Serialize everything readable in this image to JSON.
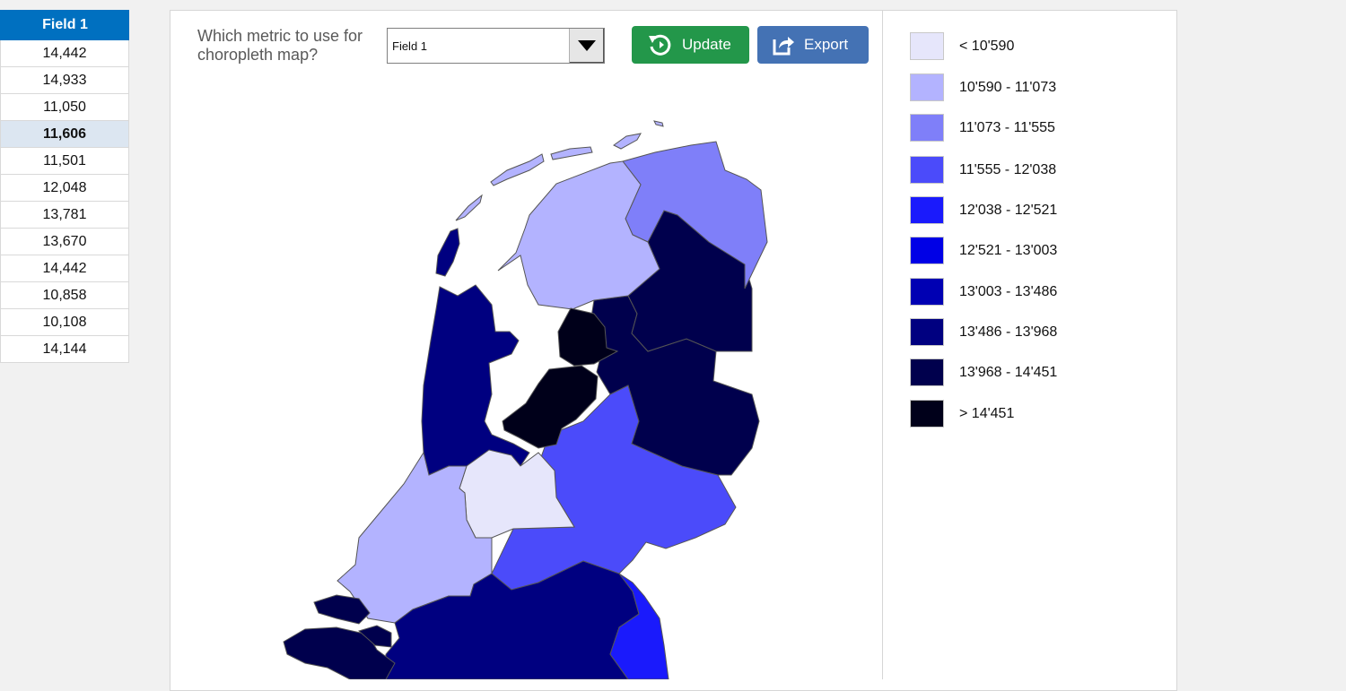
{
  "table": {
    "header": "Field 1",
    "rows": [
      "14,442",
      "14,933",
      "11,050",
      "11,606",
      "11,501",
      "12,048",
      "13,781",
      "13,670",
      "14,442",
      "10,858",
      "10,108",
      "14,144"
    ],
    "selected_index": 3
  },
  "controls": {
    "question": "Which metric to use for choropleth map?",
    "dropdown_value": "Field 1",
    "update_label": "Update",
    "export_label": "Export"
  },
  "legend": [
    {
      "label": "< 10'590",
      "color": "#e6e6fb"
    },
    {
      "label": "10'590 - 11'073",
      "color": "#b3b3ff"
    },
    {
      "label": "11'073 - 11'555",
      "color": "#7f7ff9"
    },
    {
      "label": "11'555 - 12'038",
      "color": "#4b4bfa"
    },
    {
      "label": "12'038 - 12'521",
      "color": "#1a1afc"
    },
    {
      "label": "12'521 - 13'003",
      "color": "#0000e6"
    },
    {
      "label": "13'003 - 13'486",
      "color": "#0000b3"
    },
    {
      "label": "13'486 - 13'968",
      "color": "#000080"
    },
    {
      "label": "13'968 - 14'451",
      "color": "#00004d"
    },
    {
      "label": "> 14'451",
      "color": "#00001a"
    }
  ],
  "map": {
    "regions": [
      {
        "name": "Groningen",
        "color": "#7f7ff9"
      },
      {
        "name": "Friesland",
        "color": "#b3b3ff"
      },
      {
        "name": "Drenthe",
        "color": "#00004d"
      },
      {
        "name": "Overijssel",
        "color": "#00004d"
      },
      {
        "name": "Flevoland",
        "color": "#00001a"
      },
      {
        "name": "Noord-Holland",
        "color": "#000080"
      },
      {
        "name": "Utrecht",
        "color": "#e6e6fb"
      },
      {
        "name": "Gelderland",
        "color": "#4b4bfa"
      },
      {
        "name": "Zuid-Holland",
        "color": "#b3b3ff"
      },
      {
        "name": "Zeeland",
        "color": "#00004d"
      },
      {
        "name": "Noord-Brabant",
        "color": "#000080"
      },
      {
        "name": "Limburg",
        "color": "#1a1afc"
      }
    ]
  }
}
